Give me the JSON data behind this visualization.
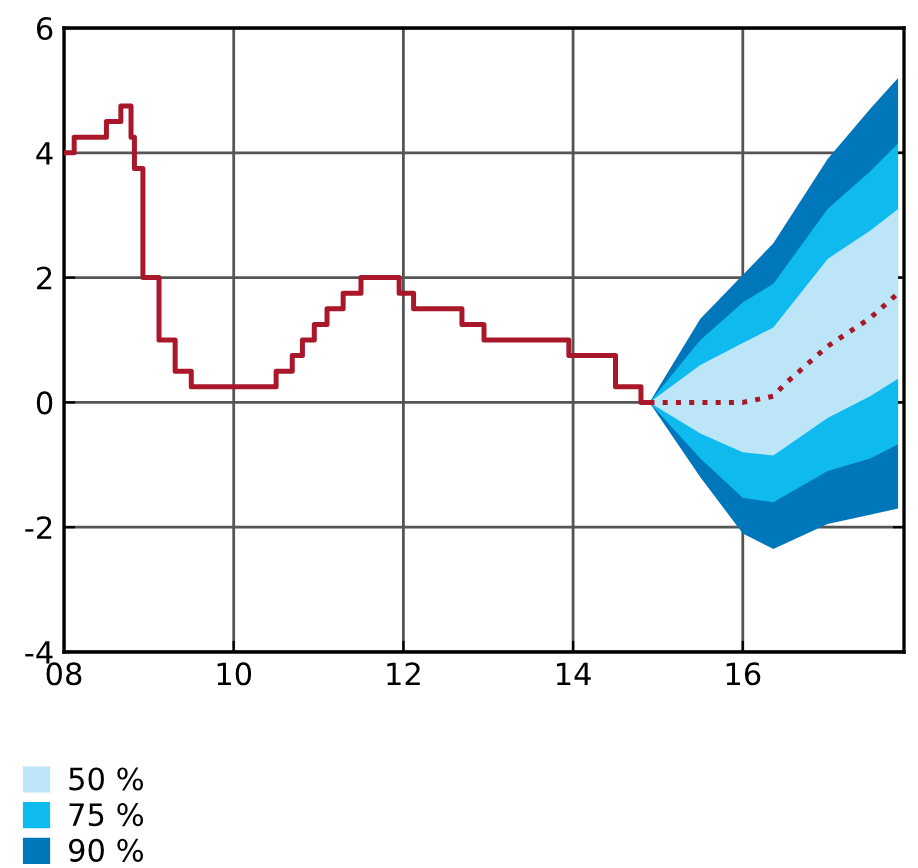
{
  "chart_data": {
    "type": "line",
    "xlim": [
      8,
      17.9
    ],
    "ylim": [
      -4,
      6
    ],
    "xticks": [
      {
        "value": 8,
        "label": "08"
      },
      {
        "value": 10,
        "label": "10"
      },
      {
        "value": 12,
        "label": "12"
      },
      {
        "value": 14,
        "label": "14"
      },
      {
        "value": 16,
        "label": "16"
      }
    ],
    "yticks": [
      -4,
      -2,
      0,
      2,
      4,
      6
    ],
    "grid": true,
    "legend": "bottom left",
    "series": [
      {
        "name": "50 %",
        "color": "#bde5f8",
        "x": [
          14.9,
          15.5,
          16.0,
          16.36,
          17.0,
          17.5,
          17.83
        ],
        "values": [
          null,
          null,
          null,
          null,
          null,
          null,
          null
        ],
        "lower": [
          0,
          -0.5,
          -0.8,
          -0.85,
          -0.25,
          0.1,
          0.38
        ],
        "upper": [
          0,
          0.6,
          0.95,
          1.2,
          2.3,
          2.75,
          3.1
        ]
      },
      {
        "name": "75 %",
        "color": "#0fbbee",
        "x": [
          14.9,
          15.5,
          16.0,
          16.36,
          17.0,
          17.5,
          17.83
        ],
        "values": [
          null,
          null,
          null,
          null,
          null,
          null,
          null
        ],
        "lower": [
          0,
          -0.9,
          -1.53,
          -1.6,
          -1.1,
          -0.9,
          -0.67
        ],
        "upper": [
          0,
          1.0,
          1.6,
          1.9,
          3.1,
          3.7,
          4.15
        ]
      },
      {
        "name": "90 %",
        "color": "#0077bb",
        "x": [
          14.9,
          15.5,
          16.0,
          16.36,
          17.0,
          17.5,
          17.83
        ],
        "values": [
          null,
          null,
          null,
          null,
          null,
          null,
          null
        ],
        "lower": [
          0,
          -1.2,
          -2.1,
          -2.35,
          -1.95,
          -1.8,
          -1.7
        ],
        "upper": [
          0,
          1.34,
          2.04,
          2.55,
          3.9,
          4.7,
          5.2
        ]
      },
      {
        "color": "#a8182a",
        "line_style": "dotted",
        "x": [
          14.9,
          15.2,
          15.5,
          16.0,
          16.36,
          16.5,
          17.0,
          17.5,
          17.83
        ],
        "values": [
          0,
          0,
          0,
          0,
          0.1,
          0.3,
          0.9,
          1.35,
          1.75
        ]
      },
      {
        "type": "step",
        "color": "#a8182a",
        "line_style": "solid",
        "x": [
          8.0,
          8.12,
          8.5,
          8.67,
          8.79,
          8.83,
          8.93,
          9.12,
          9.31,
          9.5,
          10.5,
          10.69,
          10.81,
          10.95,
          11.1,
          11.29,
          11.5,
          11.95,
          12.12,
          12.69,
          12.95,
          13.95,
          14.5,
          14.8,
          14.88
        ],
        "values": [
          4.0,
          4.25,
          4.5,
          4.75,
          4.25,
          3.75,
          2.0,
          1.0,
          0.5,
          0.25,
          0.5,
          0.75,
          1.0,
          1.25,
          1.5,
          1.75,
          2.0,
          1.75,
          1.5,
          1.25,
          1.0,
          0.75,
          0.25,
          0.0,
          0.0
        ]
      }
    ]
  }
}
